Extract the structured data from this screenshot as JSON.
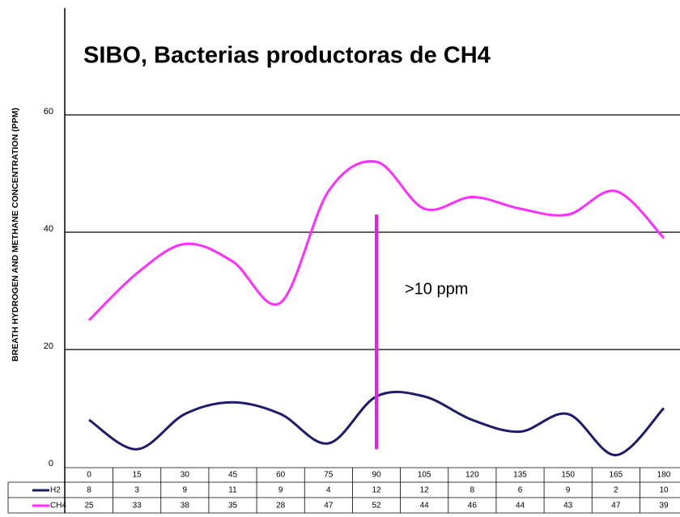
{
  "chart_data": {
    "type": "line",
    "title": "SIBO, Bacterias productoras de CH4",
    "y_label": "BREATH HYDROGEN AND METHANE CONCENTRATION (PPM)",
    "x": [
      0,
      15,
      30,
      45,
      60,
      75,
      90,
      105,
      120,
      135,
      150,
      165,
      180
    ],
    "series": [
      {
        "name": "H2",
        "color": "#1c1c6b",
        "values": [
          8,
          3,
          9,
          11,
          9,
          4,
          12,
          12,
          8,
          6,
          9,
          2,
          10
        ]
      },
      {
        "name": "CH4",
        "color": "#ff2eff",
        "values": [
          25,
          33,
          38,
          35,
          28,
          47,
          52,
          44,
          46,
          44,
          43,
          47,
          39
        ]
      }
    ],
    "xlim": [
      0,
      180
    ],
    "ylim": [
      0,
      60
    ],
    "yticks": [
      0,
      20,
      40,
      60
    ],
    "grid": true,
    "marker_line": {
      "x": 90,
      "y": [
        3,
        43
      ],
      "color": "#e61ee6"
    },
    "annotation": ">10 ppm"
  }
}
